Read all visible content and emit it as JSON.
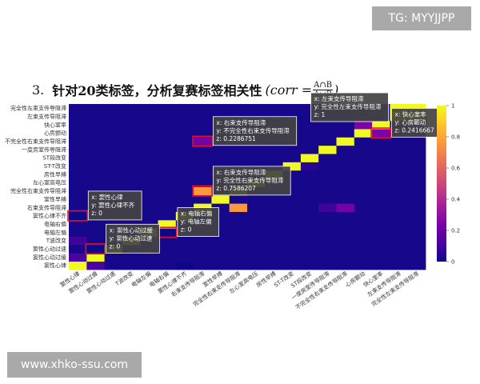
{
  "watermarks": {
    "top": "TG: MYYJJPP",
    "bottom": "www.xhko-ssu.com"
  },
  "heading": {
    "number": "3.",
    "text": "针对20类标签，分析复赛标签相关性",
    "formula_prefix": "(corr =",
    "numerator": "A∩B",
    "denominator": "A∪B",
    "formula_suffix": ")"
  },
  "chart_data": {
    "type": "heatmap",
    "labels": [
      "窦性心律",
      "窦性心动过缓",
      "窦性心动过速",
      "T波改变",
      "电轴左偏",
      "电轴右偏",
      "窦性心律不齐",
      "右束支传导阻滞",
      "室性早搏",
      "完全性右束支传导阻滞",
      "左心室高电压",
      "房性早搏",
      "ST-T改变",
      "ST段改变",
      "一度房室传导阻滞",
      "不完全性右束支传导阻滞",
      "心房颤动",
      "快心室率",
      "左束支传导阻滞",
      "完全性左束支传导阻滞"
    ],
    "colorscale": [
      "#0d0887",
      "#46039f",
      "#7201a8",
      "#9c179e",
      "#bd3786",
      "#d8576b",
      "#ed7953",
      "#fb9f3a",
      "#fdca26",
      "#f0f921"
    ],
    "zlim": [
      0,
      1
    ],
    "colorbar_ticks": [
      "0",
      "0.2",
      "0.4",
      "0.6",
      "0.8",
      "1"
    ],
    "diagonal": 1,
    "background_value": 0.02,
    "cells": [
      {
        "x": "窦性心律",
        "y": "窦性心动过缓",
        "z": 0.12
      },
      {
        "x": "窦性心律",
        "y": "T波改变",
        "z": 0.1
      },
      {
        "x": "窦性心律",
        "y": "窦性心律不齐",
        "z": 0
      },
      {
        "x": "窦性心动过缓",
        "y": "窦性心律",
        "z": 0.12
      },
      {
        "x": "窦性心动过缓",
        "y": "窦性心动过速",
        "z": 0
      },
      {
        "x": "电轴右偏",
        "y": "电轴左偏",
        "z": 0
      },
      {
        "x": "窦性心律不齐",
        "y": "窦性心律",
        "z": 0
      },
      {
        "x": "右束支传导阻滞",
        "y": "完全性右束支传导阻滞",
        "z": 0.7586207
      },
      {
        "x": "完全性右束支传导阻滞",
        "y": "右束支传导阻滞",
        "z": 0.7586207
      },
      {
        "x": "右束支传导阻滞",
        "y": "不完全性右束支传导阻滞",
        "z": 0.2286751
      },
      {
        "x": "不完全性右束支传导阻滞",
        "y": "右束支传导阻滞",
        "z": 0.2286751
      },
      {
        "x": "快心室率",
        "y": "心房颤动",
        "z": 0.2416667
      },
      {
        "x": "心房颤动",
        "y": "快心室率",
        "z": 0.2416667
      },
      {
        "x": "完全性左束支传导阻滞",
        "y": "左束支传导阻滞",
        "z": 1
      },
      {
        "x": "左束支传导阻滞",
        "y": "完全性左束支传导阻滞",
        "z": 1
      },
      {
        "x": "一度房室传导阻滞",
        "y": "右束支传导阻滞",
        "z": 0.1
      },
      {
        "x": "快心室率",
        "y": "快心室率",
        "z": 1
      },
      {
        "x": "ST段改变",
        "y": "ST-T改变",
        "z": 0.05
      },
      {
        "x": "室性早搏",
        "y": "房性早搏",
        "z": 0.05
      }
    ],
    "highlighted": [
      {
        "x": "窦性心律",
        "y": "窦性心律不齐"
      },
      {
        "x": "窦性心动过缓",
        "y": "窦性心动过速"
      },
      {
        "x": "电轴右偏",
        "y": "电轴左偏"
      },
      {
        "x": "右束支传导阻滞",
        "y": "完全性右束支传导阻滞"
      },
      {
        "x": "右束支传导阻滞",
        "y": "不完全性右束支传导阻滞"
      },
      {
        "x": "完全性左束支传导阻滞",
        "y": "左束支传导阻滞"
      },
      {
        "x": "快心室率",
        "y": "心房颤动"
      }
    ],
    "annotations": [
      {
        "x": "窦性心律",
        "y": "窦性心律不齐",
        "z": "0"
      },
      {
        "x": "窦性心动过缓",
        "y": "窦性心动过速",
        "z": "0"
      },
      {
        "x": "电轴右偏",
        "y": "电轴左偏",
        "z": "0"
      },
      {
        "x": "右束支传导阻滞",
        "y": "完全性右束支传导阻滞",
        "z": "0.7586207"
      },
      {
        "x": "右束支传导阻滞",
        "y": "不完全性右束支传导阻滞",
        "z": "0.2286751"
      },
      {
        "x": "左束支传导阻滞",
        "y": "完全性左束支传导阻滞",
        "z": "1"
      },
      {
        "x": "快心室率",
        "y": "心房颤动",
        "z": "0.2416667"
      }
    ]
  }
}
